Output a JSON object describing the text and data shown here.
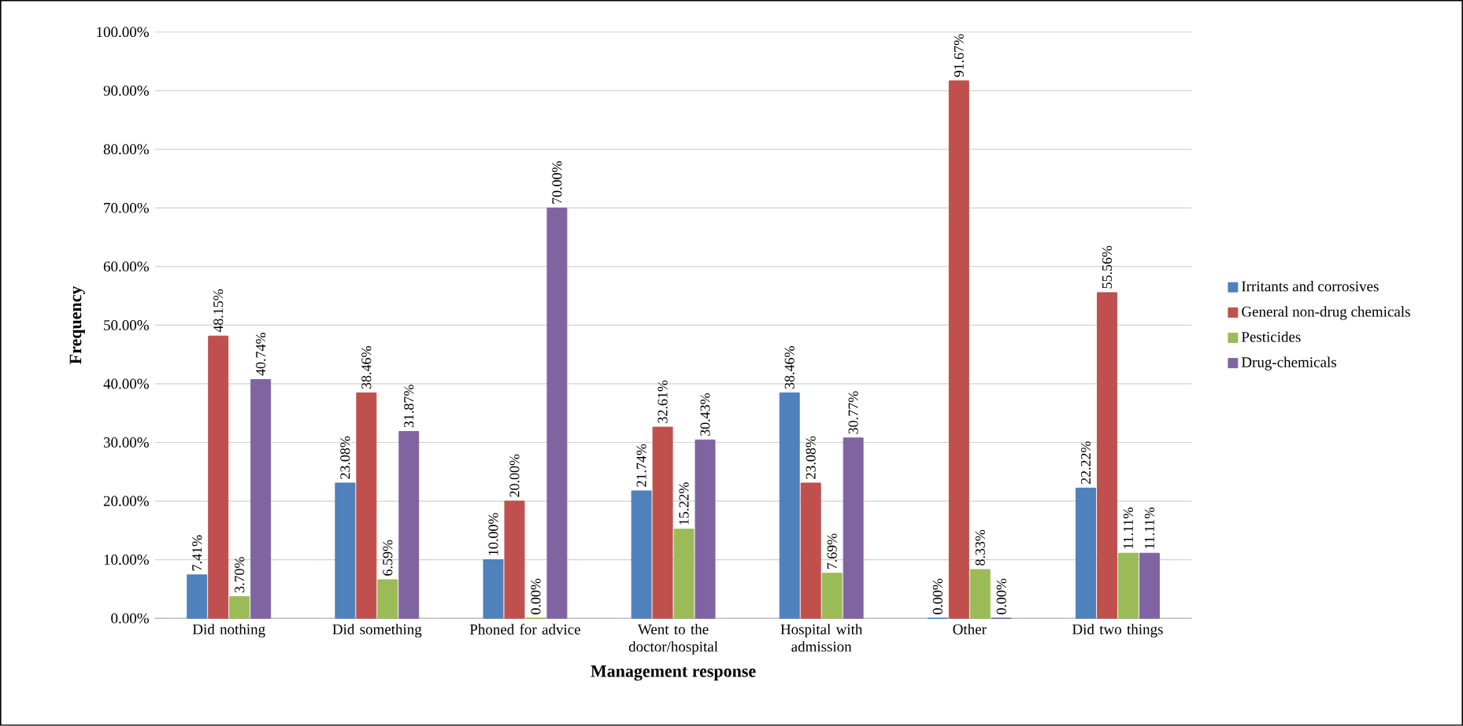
{
  "chart_data": {
    "type": "bar",
    "xlabel": "Management response",
    "ylabel": "Frequency",
    "categories": [
      "Did nothing",
      "Did something",
      "Phoned for advice",
      "Went to the doctor/hospital",
      "Hospital with admission",
      "Other",
      "Did two things"
    ],
    "series": [
      {
        "name": "Irritants and corrosives",
        "color": "#4f81bd",
        "values": [
          7.41,
          23.08,
          10.0,
          21.74,
          38.46,
          0.0,
          22.22
        ],
        "value_labels": [
          "7.41%",
          "23.08%",
          "10.00%",
          "21.74%",
          "38.46%",
          "0.00%",
          "22.22%"
        ]
      },
      {
        "name": "General non-drug chemicals",
        "color": "#c0504d",
        "values": [
          48.15,
          38.46,
          20.0,
          32.61,
          23.08,
          91.67,
          55.56
        ],
        "value_labels": [
          "48.15%",
          "38.46%",
          "20.00%",
          "32.61%",
          "23.08%",
          "91.67%",
          "55.56%"
        ]
      },
      {
        "name": "Pesticides",
        "color": "#9bbb59",
        "values": [
          3.7,
          6.59,
          0.0,
          15.22,
          7.69,
          8.33,
          11.11
        ],
        "value_labels": [
          "3.70%",
          "6.59%",
          "0.00%",
          "15.22%",
          "7.69%",
          "8.33%",
          "11.11%"
        ]
      },
      {
        "name": "Drug-chemicals",
        "color": "#8064a2",
        "values": [
          40.74,
          31.87,
          70.0,
          30.43,
          30.77,
          0.0,
          11.11
        ],
        "value_labels": [
          "40.74%",
          "31.87%",
          "70.00%",
          "30.43%",
          "30.77%",
          "0.00%",
          "11.11%"
        ]
      }
    ],
    "ylim": [
      0,
      100
    ],
    "yticks": [
      {
        "value": 0,
        "label": "0.00%"
      },
      {
        "value": 10,
        "label": "10.00%"
      },
      {
        "value": 20,
        "label": "20.00%"
      },
      {
        "value": 30,
        "label": "30.00%"
      },
      {
        "value": 40,
        "label": "40.00%"
      },
      {
        "value": 50,
        "label": "50.00%"
      },
      {
        "value": 60,
        "label": "60.00%"
      },
      {
        "value": 70,
        "label": "70.00%"
      },
      {
        "value": 80,
        "label": "80.00%"
      },
      {
        "value": 90,
        "label": "90.00%"
      },
      {
        "value": 100,
        "label": "100.00%"
      }
    ],
    "grid": "y",
    "legend": "right"
  }
}
